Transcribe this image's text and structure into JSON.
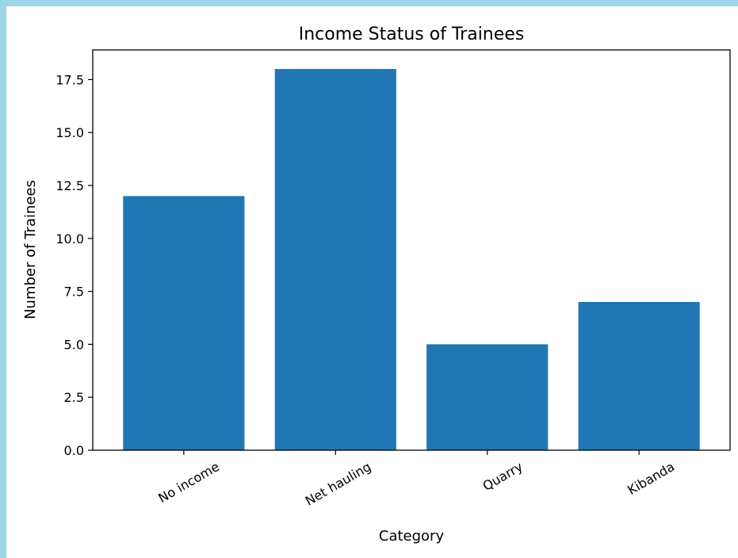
{
  "chart_data": {
    "type": "bar",
    "title": "Income Status of Trainees",
    "xlabel": "Category",
    "ylabel": "Number of Trainees",
    "categories": [
      "No income",
      "Net hauling",
      "Quarry",
      "Kibanda"
    ],
    "values": [
      12,
      18,
      5,
      7
    ],
    "ylim": [
      0,
      18.9
    ],
    "yticks": [
      0,
      2.5,
      5,
      7.5,
      10,
      12.5,
      15,
      17.5
    ],
    "ytick_labels": [
      "0.0",
      "2.5",
      "5.0",
      "7.5",
      "10.0",
      "12.5",
      "15.0",
      "17.5"
    ],
    "bar_color": "#1f77b4",
    "grid": false,
    "legend": "none"
  }
}
